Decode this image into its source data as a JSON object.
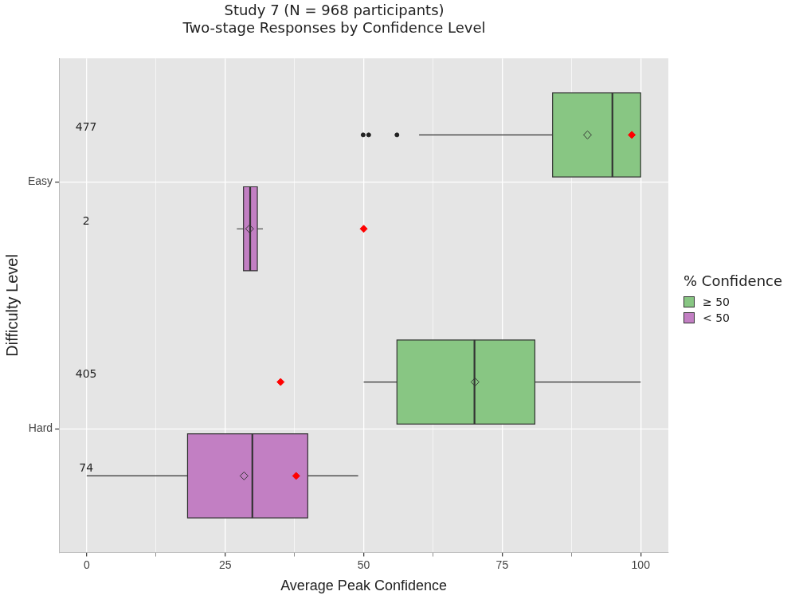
{
  "chart_data": {
    "type": "box",
    "orientation": "horizontal",
    "title": "Study 7 (N = 968 participants)",
    "subtitle": "Two-stage Responses by Confidence Level",
    "xlabel": "Average Peak Confidence",
    "ylabel": "Difficulty Level",
    "legend_title": "% Confidence",
    "legend": "right",
    "grid": true,
    "categories": [
      "Easy",
      "Hard"
    ],
    "xlim": [
      -5,
      105
    ],
    "xticks": [
      0,
      {
        "value": 12.5,
        "label": null
      },
      25,
      {
        "value": 37.5,
        "label": null
      },
      50,
      {
        "value": 62.5,
        "label": null
      },
      75,
      {
        "value": 87.5,
        "label": null
      },
      100
    ],
    "series": [
      {
        "name": "≥ 50",
        "color": "#88c683",
        "boxes": [
          {
            "low": 60,
            "q1": 84.1,
            "median": 94.9,
            "q3": 100,
            "high": 100,
            "mean": 90.4,
            "outliers": [
              49.9,
              50.9,
              56
            ]
          },
          {
            "low": 50,
            "q1": 56,
            "median": 70,
            "q3": 80.9,
            "high": 100,
            "mean": 70.1
          }
        ]
      },
      {
        "name": "< 50",
        "color": "#c27fc3",
        "boxes": [
          {
            "low": 27.1,
            "q1": 28.3,
            "median": 29.5,
            "q3": 30.8,
            "high": 31.8,
            "mean": 29.4
          },
          {
            "low": 0,
            "q1": 18.2,
            "median": 29.9,
            "q3": 39.9,
            "high": 49,
            "mean": 28.4
          }
        ]
      },
      {
        "type": "scatter",
        "color": "#ff0000",
        "marker": "diamond",
        "x": [
          "Easy",
          "Hard"
        ],
        "values": [
          98.4,
          35
        ]
      },
      {
        "type": "scatter",
        "color": "#ff0000",
        "marker": "diamond",
        "x": [
          "Easy",
          "Hard"
        ],
        "values": [
          50,
          37.8
        ]
      }
    ],
    "annotations": [
      "477",
      "2",
      "405",
      "74"
    ]
  }
}
